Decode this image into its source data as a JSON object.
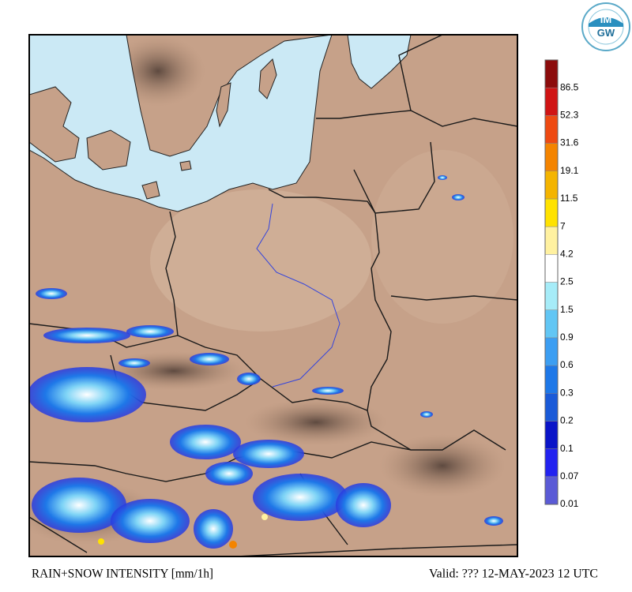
{
  "logo": {
    "top": "IM",
    "bottom": "GW"
  },
  "legend": [
    {
      "label": "0.01",
      "color": "#5b5bd6"
    },
    {
      "label": "0.07",
      "color": "#2222f0"
    },
    {
      "label": "0.1",
      "color": "#0a14c8"
    },
    {
      "label": "0.2",
      "color": "#1a5ad8"
    },
    {
      "label": "0.3",
      "color": "#1e78e8"
    },
    {
      "label": "0.6",
      "color": "#3c9ef2"
    },
    {
      "label": "0.9",
      "color": "#62c6f4"
    },
    {
      "label": "1.5",
      "color": "#a6ecf8"
    },
    {
      "label": "2.5",
      "color": "#ffffff"
    },
    {
      "label": "4.2",
      "color": "#fff1a0"
    },
    {
      "label": "7",
      "color": "#ffe200"
    },
    {
      "label": "11.5",
      "color": "#f4b400"
    },
    {
      "label": "19.1",
      "color": "#f48400"
    },
    {
      "label": "31.6",
      "color": "#ee4a12"
    },
    {
      "label": "52.3",
      "color": "#d01414"
    },
    {
      "label": "86.5",
      "color": "#8c0c0c"
    }
  ],
  "footer": {
    "left": "RAIN+SNOW INTENSITY [mm/1h]",
    "right": "Valid: ??? 12-MAY-2023 12 UTC"
  }
}
